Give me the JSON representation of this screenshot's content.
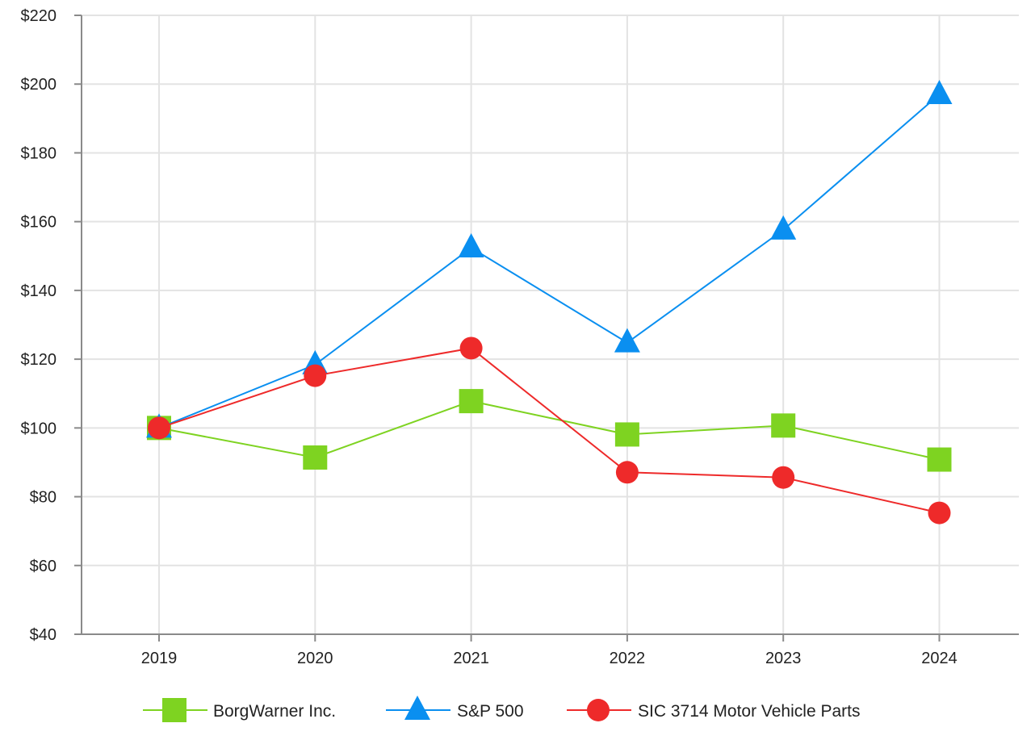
{
  "chart_data": {
    "type": "line",
    "title": "",
    "xlabel": "",
    "ylabel": "",
    "categories": [
      "2019",
      "2020",
      "2021",
      "2022",
      "2023",
      "2024"
    ],
    "ylim": [
      40,
      220
    ],
    "yticks": [
      40,
      60,
      80,
      100,
      120,
      140,
      160,
      180,
      200,
      220
    ],
    "ytick_labels": [
      "$40",
      "$60",
      "$80",
      "$100",
      "$120",
      "$140",
      "$160",
      "$180",
      "$200",
      "$220"
    ],
    "grid": true,
    "legend_position": "bottom",
    "series": [
      {
        "name": "BorgWarner Inc.",
        "marker": "square",
        "color": "#7ED321",
        "values": [
          100,
          91.4,
          107.8,
          98.1,
          100.7,
          90.8
        ]
      },
      {
        "name": "S&P 500",
        "marker": "triangle",
        "color": "#0A8FF0",
        "values": [
          100,
          118.4,
          152.4,
          124.8,
          157.6,
          197.0
        ]
      },
      {
        "name": "SIC 3714 Motor Vehicle Parts",
        "marker": "circle",
        "color": "#EE2A2A",
        "values": [
          100,
          115.2,
          123.2,
          87.1,
          85.6,
          75.3
        ]
      }
    ]
  }
}
